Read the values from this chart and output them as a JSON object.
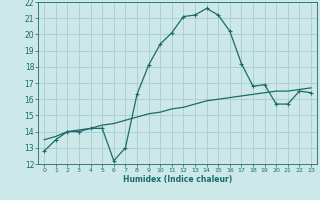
{
  "xlabel": "Humidex (Indice chaleur)",
  "bg_color": "#cce8e8",
  "grid_color": "#aacccc",
  "line_color": "#1a6b6b",
  "xlim": [
    -0.5,
    23.5
  ],
  "ylim": [
    12,
    22
  ],
  "yticks": [
    12,
    13,
    14,
    15,
    16,
    17,
    18,
    19,
    20,
    21,
    22
  ],
  "xticks": [
    0,
    1,
    2,
    3,
    4,
    5,
    6,
    7,
    8,
    9,
    10,
    11,
    12,
    13,
    14,
    15,
    16,
    17,
    18,
    19,
    20,
    21,
    22,
    23
  ],
  "xtick_labels": [
    "0",
    "1",
    "2",
    "3",
    "4",
    "5",
    "6",
    "7",
    "8",
    "9",
    "10",
    "11",
    "12",
    "13",
    "14",
    "15",
    "16",
    "17",
    "18",
    "19",
    "20",
    "21",
    "22",
    "23"
  ],
  "curve1_x": [
    0,
    1,
    2,
    3,
    4,
    5,
    6,
    7,
    8,
    9,
    10,
    11,
    12,
    13,
    14,
    15,
    16,
    17,
    18,
    19,
    20,
    21,
    22,
    23
  ],
  "curve1_y": [
    12.8,
    13.5,
    14.0,
    14.0,
    14.2,
    14.2,
    12.2,
    13.0,
    16.3,
    18.1,
    19.4,
    20.1,
    21.1,
    21.2,
    21.6,
    21.2,
    20.2,
    18.2,
    16.8,
    16.9,
    15.7,
    15.7,
    16.5,
    16.4
  ],
  "curve2_x": [
    0,
    1,
    2,
    3,
    4,
    5,
    6,
    7,
    8,
    9,
    10,
    11,
    12,
    13,
    14,
    15,
    16,
    17,
    18,
    19,
    20,
    21,
    22,
    23
  ],
  "curve2_y": [
    13.5,
    13.7,
    14.0,
    14.1,
    14.2,
    14.4,
    14.5,
    14.7,
    14.9,
    15.1,
    15.2,
    15.4,
    15.5,
    15.7,
    15.9,
    16.0,
    16.1,
    16.2,
    16.3,
    16.4,
    16.5,
    16.5,
    16.6,
    16.7
  ]
}
